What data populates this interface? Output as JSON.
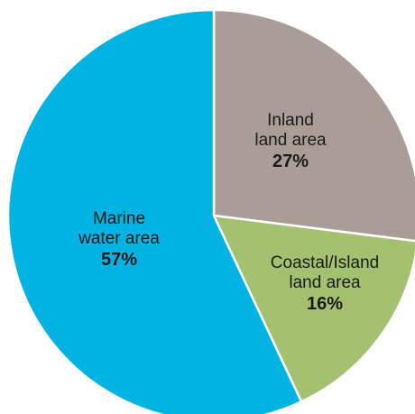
{
  "chart_data": {
    "type": "pie",
    "title": "",
    "legend": "none",
    "slices": [
      {
        "label_lines": [
          "Inland",
          "land area"
        ],
        "percent_label": "27%",
        "value": 27,
        "color": "#aa9d98"
      },
      {
        "label_lines": [
          "Coastal/Island",
          "land area"
        ],
        "percent_label": "16%",
        "value": 16,
        "color": "#a3c170"
      },
      {
        "label_lines": [
          "Marine",
          "water area"
        ],
        "percent_label": "57%",
        "value": 57,
        "color": "#00b3e2"
      }
    ],
    "start_angle_deg": 0,
    "direction": "clockwise",
    "slice_border_color": "#ffffff"
  }
}
